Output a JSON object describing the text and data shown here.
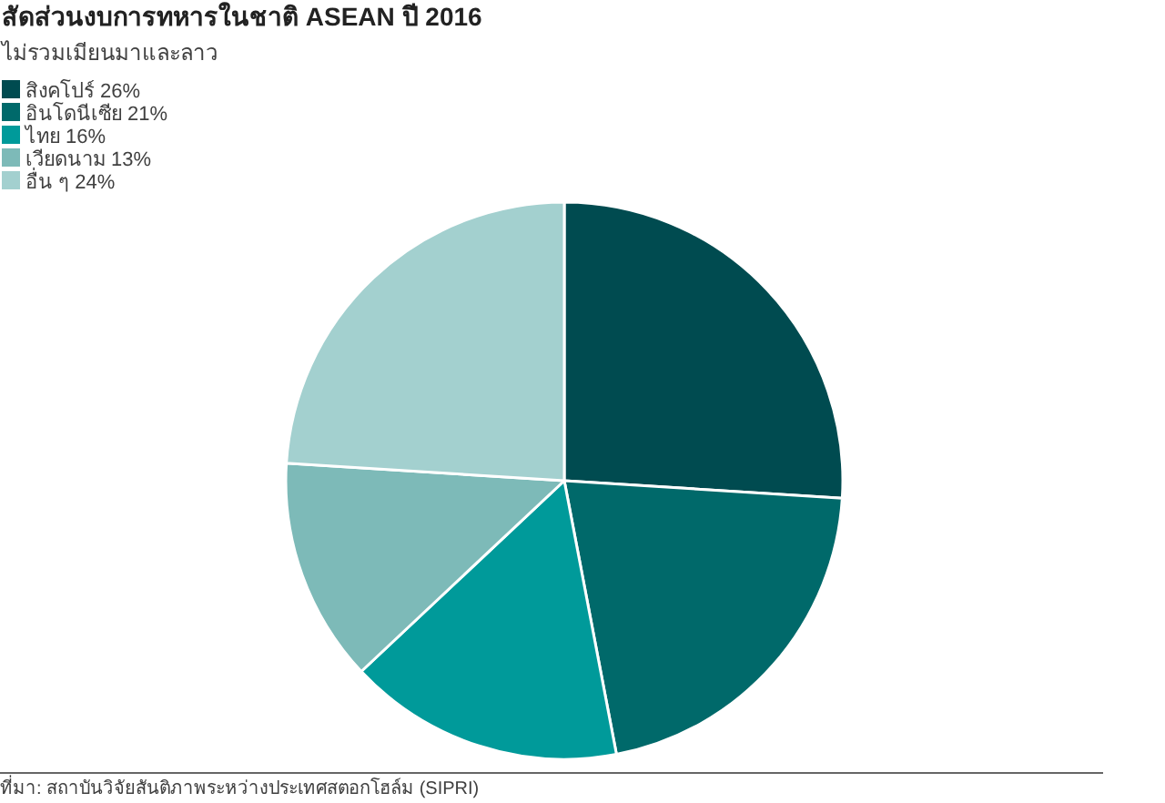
{
  "chart_data": {
    "type": "pie",
    "title": "สัดส่วนงบการทหารในชาติ ASEAN ปี 2016",
    "subtitle": "ไม่รวมเมียนมาและลาว",
    "categories": [
      "สิงคโปร์ 26%",
      "อินโดนีเซีย 21%",
      "ไทย 16%",
      "เวียดนาม 13%",
      "อื่น ๆ 24%"
    ],
    "values": [
      26,
      21,
      16,
      13,
      24
    ],
    "colors": [
      "#004b50",
      "#00696a",
      "#009a9a",
      "#7dbab8",
      "#a3d0cf"
    ],
    "legend": "top left",
    "annotations": [
      "ที่มา: สถาบันวิจัยสันติภาพระหว่างประเทศสตอกโฮล์ม (SIPRI)"
    ]
  }
}
